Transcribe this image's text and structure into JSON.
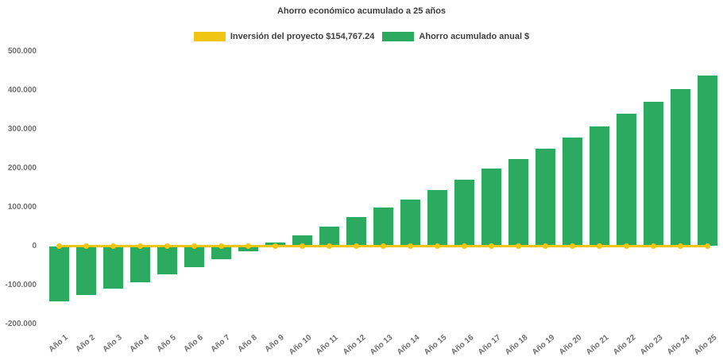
{
  "chart_data": {
    "type": "bar",
    "title": "Ahorro económico acumulado a 25 años",
    "xlabel": "",
    "ylabel": "",
    "categories": [
      "Año 1",
      "Año 2",
      "Año 3",
      "Año 4",
      "Año 5",
      "Año 6",
      "Año 7",
      "Año 8",
      "Año 9",
      "Año 10",
      "Año 11",
      "Año 12",
      "Año 13",
      "Año 14",
      "Año 15",
      "Año 16",
      "Año 17",
      "Año 18",
      "Año 19",
      "Año 20",
      "Año 21",
      "Año 22",
      "Año 23",
      "Año 24",
      "Año 25"
    ],
    "series": [
      {
        "name": "Inversión del proyecto $154,767.24",
        "type": "line",
        "marker": "circle",
        "color": "#F0C514",
        "values": [
          0,
          0,
          0,
          0,
          0,
          0,
          0,
          0,
          0,
          0,
          0,
          0,
          0,
          0,
          0,
          0,
          0,
          0,
          0,
          0,
          0,
          0,
          0,
          0,
          0
        ]
      },
      {
        "name": "Ahorro acumulado anual $",
        "type": "bar",
        "color": "#2BAA60",
        "values": [
          -141000,
          -126000,
          -109000,
          -93000,
          -73000,
          -54000,
          -34000,
          -14000,
          9000,
          27000,
          49000,
          75000,
          98000,
          119000,
          144000,
          170000,
          198000,
          224000,
          251000,
          279000,
          308000,
          339000,
          371000,
          404000,
          437000
        ]
      }
    ],
    "ylim": [
      -200000,
      500000
    ],
    "yticks": [
      {
        "value": 500000,
        "label": "500.000"
      },
      {
        "value": 400000,
        "label": "400.000"
      },
      {
        "value": 300000,
        "label": "300.000"
      },
      {
        "value": 200000,
        "label": "200.000"
      },
      {
        "value": 100000,
        "label": "100.000"
      },
      {
        "value": 0,
        "label": "0"
      },
      {
        "value": -100000,
        "label": "-100.000"
      },
      {
        "value": -200000,
        "label": "-200.000"
      }
    ],
    "legend_position": "top",
    "grid": false,
    "background": "#FFFFFF"
  }
}
